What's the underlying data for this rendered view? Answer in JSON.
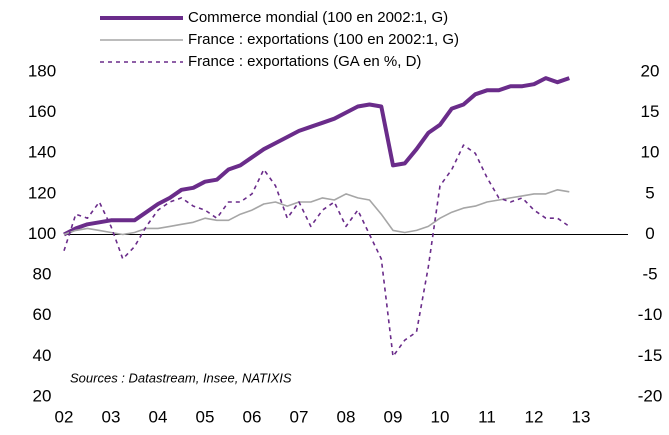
{
  "chart_data": {
    "type": "line",
    "annotation": "Sources : Datastream, Insee, NATIXIS",
    "x": [
      2002,
      2002.25,
      2002.5,
      2002.75,
      2003,
      2003.25,
      2003.5,
      2003.75,
      2004,
      2004.25,
      2004.5,
      2004.75,
      2005,
      2005.25,
      2005.5,
      2005.75,
      2006,
      2006.25,
      2006.5,
      2006.75,
      2007,
      2007.25,
      2007.5,
      2007.75,
      2008,
      2008.25,
      2008.5,
      2008.75,
      2009,
      2009.25,
      2009.5,
      2009.75,
      2010,
      2010.25,
      2010.5,
      2010.75,
      2011,
      2011.25,
      2011.5,
      2011.75,
      2012,
      2012.25,
      2012.5,
      2012.75
    ],
    "series": [
      {
        "name": "Commerce mondial (100 en 2002:1, G)",
        "color": "#6a2c8a",
        "width": 4,
        "dash": false,
        "axis": "y",
        "values": [
          100,
          103,
          105,
          106,
          107,
          107,
          107,
          111,
          115,
          118,
          122,
          123,
          126,
          127,
          132,
          134,
          138,
          142,
          145,
          148,
          151,
          153,
          155,
          157,
          160,
          163,
          164,
          163,
          134,
          135,
          142,
          150,
          154,
          162,
          164,
          169,
          171,
          171,
          173,
          173,
          174,
          177,
          175,
          177
        ]
      },
      {
        "name": "France : exportations (100 en 2002:1, G)",
        "color": "#a6a6a6",
        "width": 1.6,
        "dash": false,
        "axis": "y",
        "values": [
          100,
          102,
          103,
          102,
          101,
          100,
          101,
          103,
          103,
          104,
          105,
          106,
          108,
          107,
          107,
          110,
          112,
          115,
          116,
          114,
          116,
          116,
          118,
          117,
          120,
          118,
          117,
          110,
          102,
          101,
          102,
          104,
          108,
          111,
          113,
          114,
          116,
          117,
          118,
          119,
          120,
          120,
          122,
          121
        ]
      },
      {
        "name": "France : exportations (GA en %, D)",
        "color": "#6a2c8a",
        "width": 1.6,
        "dash": true,
        "axis": "y2",
        "values": [
          -2,
          2.5,
          2,
          4,
          1,
          -3,
          -1.5,
          1,
          3,
          4,
          4.5,
          3.5,
          3,
          2,
          4,
          4,
          5,
          8,
          6,
          2,
          4,
          1,
          3,
          4,
          1,
          3,
          0,
          -3,
          -15,
          -13,
          -12,
          -4,
          6,
          8,
          11,
          10,
          7,
          4.5,
          4,
          4.5,
          3,
          2,
          2,
          1
        ]
      }
    ],
    "xlim": [
      2002,
      2014
    ],
    "xticks": [
      {
        "value": 2002,
        "label": "02"
      },
      {
        "value": 2003,
        "label": "03"
      },
      {
        "value": 2004,
        "label": "04"
      },
      {
        "value": 2005,
        "label": "05"
      },
      {
        "value": 2006,
        "label": "06"
      },
      {
        "value": 2007,
        "label": "07"
      },
      {
        "value": 2008,
        "label": "08"
      },
      {
        "value": 2009,
        "label": "09"
      },
      {
        "value": 2010,
        "label": "10"
      },
      {
        "value": 2011,
        "label": "11"
      },
      {
        "value": 2012,
        "label": "12"
      },
      {
        "value": 2013,
        "label": "13"
      }
    ],
    "ylim": [
      20,
      180
    ],
    "yticks": [
      20,
      40,
      60,
      80,
      100,
      120,
      140,
      160,
      180
    ],
    "y2lim": [
      -20,
      20
    ],
    "y2ticks": [
      -20,
      -15,
      -10,
      -5,
      0,
      5,
      10,
      15,
      20
    ],
    "baseline": 100
  }
}
